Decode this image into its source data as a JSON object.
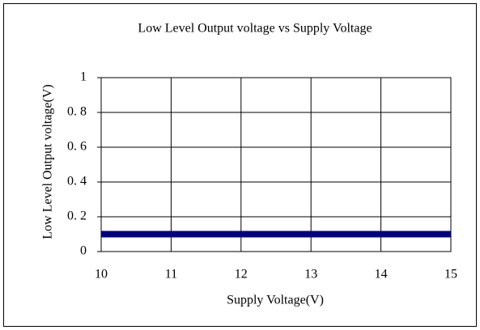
{
  "chart_data": {
    "type": "line",
    "title": "Low Level Output voltage vs  Supply Voltage",
    "x_label": "Supply Voltage(V)",
    "y_label": "Low Level Output voltage(V)",
    "x": [
      10,
      11,
      12,
      13,
      14,
      15
    ],
    "series": [
      {
        "color": "#000080",
        "values": [
          0.1,
          0.1,
          0.1,
          0.1,
          0.1,
          0.1
        ]
      }
    ],
    "xlim": [
      10,
      15
    ],
    "xticks": [
      10,
      11,
      12,
      13,
      14,
      15
    ],
    "ylim": [
      0,
      1
    ],
    "yticks": [
      0,
      {
        "value": 0.2,
        "label": "0. 2"
      },
      {
        "value": 0.4,
        "label": "0. 4"
      },
      {
        "value": 0.6,
        "label": "0. 6"
      },
      {
        "value": 0.8,
        "label": "0. 8"
      },
      1
    ],
    "grid": true
  }
}
